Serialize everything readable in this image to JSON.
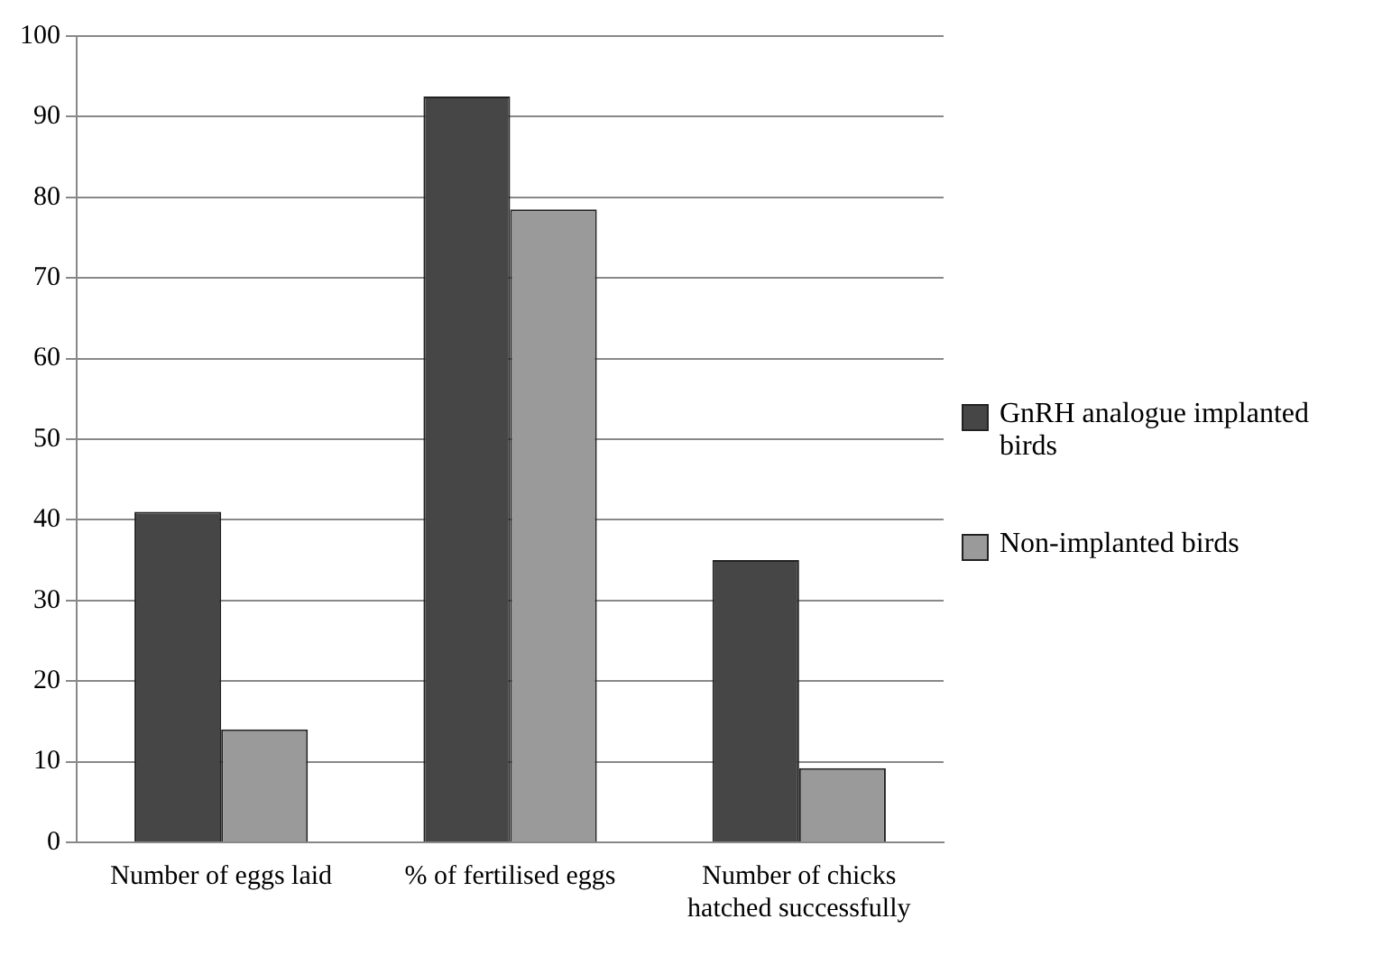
{
  "chart_data": {
    "type": "bar",
    "categories": [
      "Number of eggs laid",
      "% of fertilised eggs",
      "Number of chicks hatched successfully"
    ],
    "series": [
      {
        "name": "GnRH analogue implanted birds",
        "color": "#464646",
        "values": [
          41,
          92.5,
          35
        ]
      },
      {
        "name": "Non-implanted birds",
        "color": "#9a9a9a",
        "values": [
          14,
          78.5,
          9.2
        ]
      }
    ],
    "ylim": [
      0,
      100
    ],
    "yticks": [
      0,
      10,
      20,
      30,
      40,
      50,
      60,
      70,
      80,
      90,
      100
    ],
    "grid": "y",
    "legend": "right"
  }
}
